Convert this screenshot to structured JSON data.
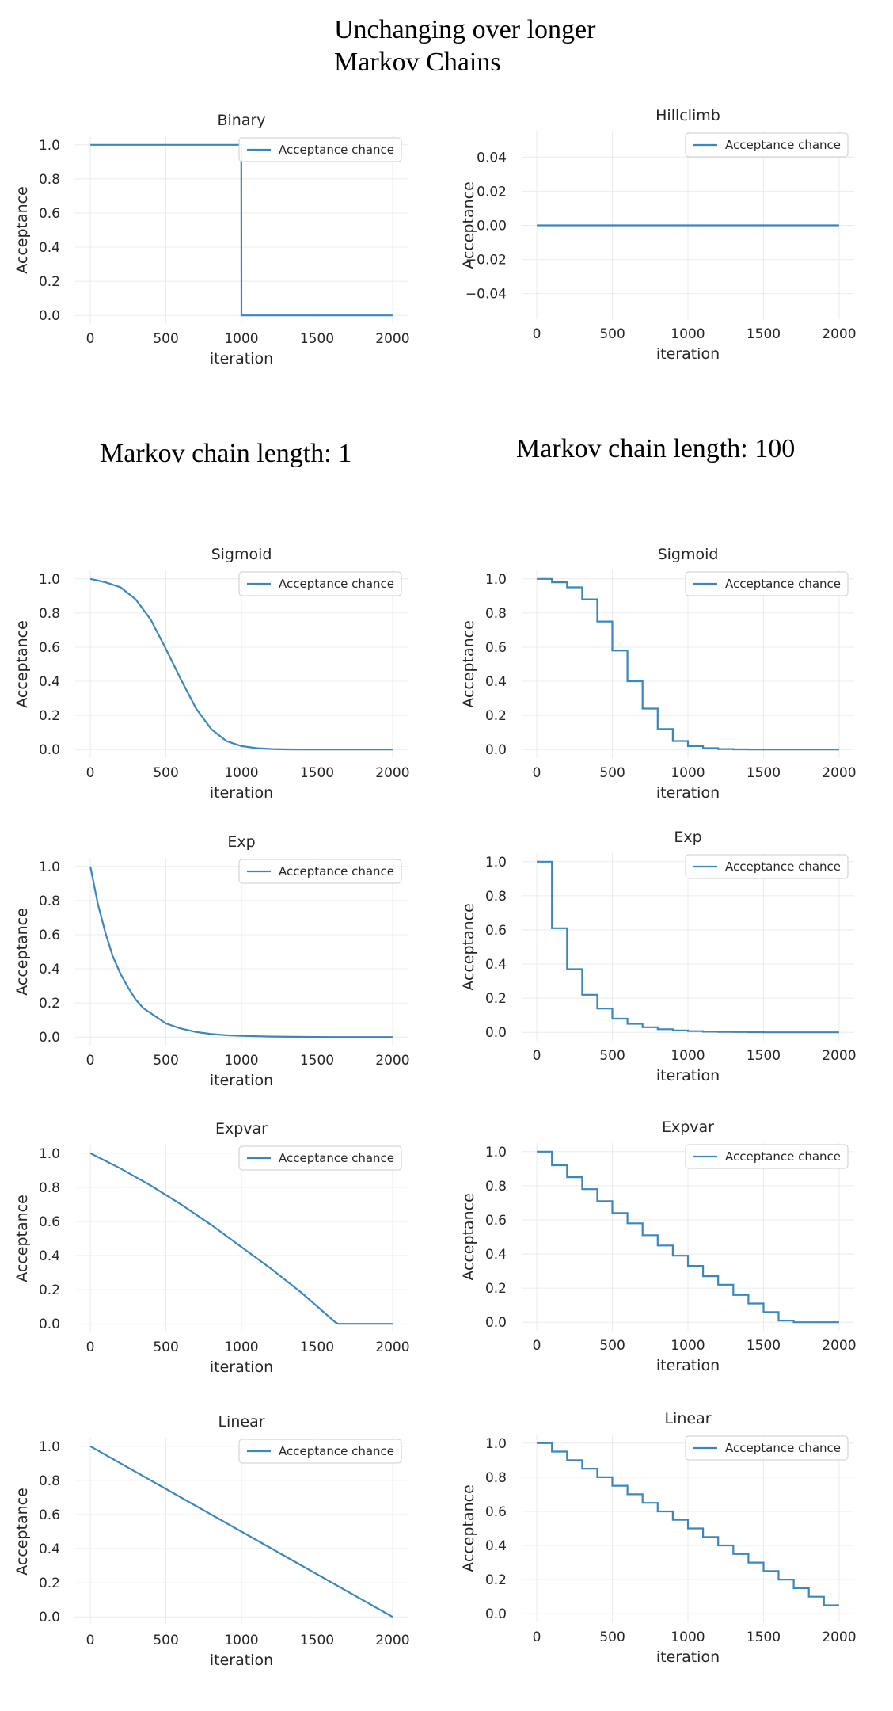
{
  "page": {
    "top_note": [
      "Unchanging over longer",
      "Markov Chains"
    ],
    "left_column_title": "Markov chain length: 1",
    "right_column_title": "Markov chain length: 100"
  },
  "style": {
    "line_color": "#3a87c0",
    "grid_color": "#ebebeb",
    "text_color": "#262626"
  },
  "chart_data": [
    {
      "id": "binary",
      "type": "line",
      "title": "Binary",
      "xlabel": "iteration",
      "ylabel": "Acceptance",
      "legend": "Acceptance chance",
      "legend_position": "top-right",
      "grid": true,
      "xlim": [
        -100,
        2100
      ],
      "ylim": [
        -0.05,
        1.05
      ],
      "xticks": [
        0,
        500,
        1000,
        1500,
        2000
      ],
      "xtick_labels": [
        "0",
        "500",
        "1000",
        "1500",
        "2000"
      ],
      "yticks": [
        0,
        0.2,
        0.4,
        0.6,
        0.8,
        1.0
      ],
      "ytick_labels": [
        "0.0",
        "0.2",
        "0.4",
        "0.6",
        "0.8",
        "1.0"
      ],
      "series": [
        {
          "name": "Acceptance chance",
          "x": [
            0,
            999,
            1000,
            2000
          ],
          "y": [
            1,
            1,
            0,
            0
          ]
        }
      ]
    },
    {
      "id": "hillclimb",
      "type": "line",
      "title": "Hillclimb",
      "xlabel": "iteration",
      "ylabel": "Acceptance",
      "legend": "Acceptance chance",
      "legend_position": "top-right",
      "grid": true,
      "xlim": [
        -100,
        2100
      ],
      "ylim": [
        -0.055,
        0.055
      ],
      "xticks": [
        0,
        500,
        1000,
        1500,
        2000
      ],
      "xtick_labels": [
        "0",
        "500",
        "1000",
        "1500",
        "2000"
      ],
      "yticks": [
        -0.04,
        -0.02,
        0,
        0.02,
        0.04
      ],
      "ytick_labels": [
        "−0.04",
        "−0.02",
        "0.00",
        "0.02",
        "0.04"
      ],
      "series": [
        {
          "name": "Acceptance chance",
          "x": [
            0,
            2000
          ],
          "y": [
            0,
            0
          ]
        }
      ]
    },
    {
      "id": "sigmoid-1",
      "type": "line",
      "title": "Sigmoid",
      "xlabel": "iteration",
      "ylabel": "Acceptance",
      "legend": "Acceptance chance",
      "legend_position": "top-right",
      "grid": true,
      "xlim": [
        -100,
        2100
      ],
      "ylim": [
        -0.05,
        1.05
      ],
      "xticks": [
        0,
        500,
        1000,
        1500,
        2000
      ],
      "xtick_labels": [
        "0",
        "500",
        "1000",
        "1500",
        "2000"
      ],
      "yticks": [
        0,
        0.2,
        0.4,
        0.6,
        0.8,
        1.0
      ],
      "ytick_labels": [
        "0.0",
        "0.2",
        "0.4",
        "0.6",
        "0.8",
        "1.0"
      ],
      "series": [
        {
          "name": "Acceptance chance",
          "x": [
            0,
            100,
            200,
            300,
            400,
            500,
            600,
            700,
            800,
            900,
            1000,
            1100,
            1200,
            1300,
            1400,
            1500,
            2000
          ],
          "y": [
            1.0,
            0.98,
            0.95,
            0.88,
            0.76,
            0.59,
            0.41,
            0.24,
            0.12,
            0.05,
            0.02,
            0.008,
            0.003,
            0.001,
            0,
            0,
            0
          ]
        }
      ]
    },
    {
      "id": "sigmoid-100",
      "type": "line",
      "title": "Sigmoid",
      "xlabel": "iteration",
      "ylabel": "Acceptance",
      "legend": "Acceptance chance",
      "legend_position": "top-right",
      "grid": true,
      "xlim": [
        -100,
        2100
      ],
      "ylim": [
        -0.05,
        1.05
      ],
      "xticks": [
        0,
        500,
        1000,
        1500,
        2000
      ],
      "xtick_labels": [
        "0",
        "500",
        "1000",
        "1500",
        "2000"
      ],
      "yticks": [
        0,
        0.2,
        0.4,
        0.6,
        0.8,
        1.0
      ],
      "ytick_labels": [
        "0.0",
        "0.2",
        "0.4",
        "0.6",
        "0.8",
        "1.0"
      ],
      "series": [
        {
          "name": "Acceptance chance",
          "step": true,
          "x": [
            0,
            100,
            200,
            300,
            400,
            500,
            600,
            700,
            800,
            900,
            1000,
            1100,
            1200,
            1300,
            1400,
            1500,
            2000
          ],
          "y": [
            1.0,
            0.98,
            0.95,
            0.88,
            0.75,
            0.58,
            0.4,
            0.24,
            0.12,
            0.05,
            0.02,
            0.008,
            0.003,
            0.001,
            0,
            0,
            0
          ]
        }
      ]
    },
    {
      "id": "exp-1",
      "type": "line",
      "title": "Exp",
      "xlabel": "iteration",
      "ylabel": "Acceptance",
      "legend": "Acceptance chance",
      "legend_position": "top-right",
      "grid": true,
      "xlim": [
        -100,
        2100
      ],
      "ylim": [
        -0.05,
        1.05
      ],
      "xticks": [
        0,
        500,
        1000,
        1500,
        2000
      ],
      "xtick_labels": [
        "0",
        "500",
        "1000",
        "1500",
        "2000"
      ],
      "yticks": [
        0,
        0.2,
        0.4,
        0.6,
        0.8,
        1.0
      ],
      "ytick_labels": [
        "0.0",
        "0.2",
        "0.4",
        "0.6",
        "0.8",
        "1.0"
      ],
      "series": [
        {
          "name": "Acceptance chance",
          "x": [
            0,
            50,
            100,
            150,
            200,
            250,
            300,
            350,
            400,
            500,
            600,
            700,
            800,
            900,
            1000,
            1200,
            1400,
            1600,
            1800,
            2000
          ],
          "y": [
            1.0,
            0.78,
            0.61,
            0.47,
            0.37,
            0.29,
            0.22,
            0.17,
            0.14,
            0.08,
            0.05,
            0.03,
            0.018,
            0.011,
            0.007,
            0.003,
            0.001,
            0,
            0,
            0
          ]
        }
      ]
    },
    {
      "id": "exp-100",
      "type": "line",
      "title": "Exp",
      "xlabel": "iteration",
      "ylabel": "Acceptance",
      "legend": "Acceptance chance",
      "legend_position": "top-right",
      "grid": true,
      "xlim": [
        -100,
        2100
      ],
      "ylim": [
        -0.05,
        1.05
      ],
      "xticks": [
        0,
        500,
        1000,
        1500,
        2000
      ],
      "xtick_labels": [
        "0",
        "500",
        "1000",
        "1500",
        "2000"
      ],
      "yticks": [
        0,
        0.2,
        0.4,
        0.6,
        0.8,
        1.0
      ],
      "ytick_labels": [
        "0.0",
        "0.2",
        "0.4",
        "0.6",
        "0.8",
        "1.0"
      ],
      "series": [
        {
          "name": "Acceptance chance",
          "step": true,
          "x": [
            0,
            100,
            200,
            300,
            400,
            500,
            600,
            700,
            800,
            900,
            1000,
            1100,
            1200,
            1300,
            1400,
            1500,
            2000
          ],
          "y": [
            1.0,
            0.61,
            0.37,
            0.22,
            0.14,
            0.08,
            0.05,
            0.03,
            0.018,
            0.011,
            0.007,
            0.004,
            0.003,
            0.002,
            0.001,
            0,
            0
          ]
        }
      ]
    },
    {
      "id": "expvar-1",
      "type": "line",
      "title": "Expvar",
      "xlabel": "iteration",
      "ylabel": "Acceptance",
      "legend": "Acceptance chance",
      "legend_position": "top-right",
      "grid": true,
      "xlim": [
        -100,
        2100
      ],
      "ylim": [
        -0.05,
        1.05
      ],
      "xticks": [
        0,
        500,
        1000,
        1500,
        2000
      ],
      "xtick_labels": [
        "0",
        "500",
        "1000",
        "1500",
        "2000"
      ],
      "yticks": [
        0,
        0.2,
        0.4,
        0.6,
        0.8,
        1.0
      ],
      "ytick_labels": [
        "0.0",
        "0.2",
        "0.4",
        "0.6",
        "0.8",
        "1.0"
      ],
      "series": [
        {
          "name": "Acceptance chance",
          "x": [
            0,
            200,
            400,
            600,
            800,
            1000,
            1200,
            1400,
            1620,
            1640,
            2000
          ],
          "y": [
            1.0,
            0.91,
            0.81,
            0.7,
            0.58,
            0.45,
            0.32,
            0.18,
            0.01,
            0,
            0
          ]
        }
      ]
    },
    {
      "id": "expvar-100",
      "type": "line",
      "title": "Expvar",
      "xlabel": "iteration",
      "ylabel": "Acceptance",
      "legend": "Acceptance chance",
      "legend_position": "top-right",
      "grid": true,
      "xlim": [
        -100,
        2100
      ],
      "ylim": [
        -0.05,
        1.05
      ],
      "xticks": [
        0,
        500,
        1000,
        1500,
        2000
      ],
      "xtick_labels": [
        "0",
        "500",
        "1000",
        "1500",
        "2000"
      ],
      "yticks": [
        0,
        0.2,
        0.4,
        0.6,
        0.8,
        1.0
      ],
      "ytick_labels": [
        "0.0",
        "0.2",
        "0.4",
        "0.6",
        "0.8",
        "1.0"
      ],
      "series": [
        {
          "name": "Acceptance chance",
          "step": true,
          "x": [
            0,
            100,
            200,
            300,
            400,
            500,
            600,
            700,
            800,
            900,
            1000,
            1100,
            1200,
            1300,
            1400,
            1500,
            1600,
            1700,
            2000
          ],
          "y": [
            1.0,
            0.92,
            0.85,
            0.78,
            0.71,
            0.64,
            0.58,
            0.51,
            0.45,
            0.39,
            0.33,
            0.27,
            0.22,
            0.16,
            0.11,
            0.06,
            0.01,
            0,
            0
          ]
        }
      ]
    },
    {
      "id": "linear-1",
      "type": "line",
      "title": "Linear",
      "xlabel": "iteration",
      "ylabel": "Acceptance",
      "legend": "Acceptance chance",
      "legend_position": "top-right",
      "grid": true,
      "xlim": [
        -100,
        2100
      ],
      "ylim": [
        -0.05,
        1.05
      ],
      "xticks": [
        0,
        500,
        1000,
        1500,
        2000
      ],
      "xtick_labels": [
        "0",
        "500",
        "1000",
        "1500",
        "2000"
      ],
      "yticks": [
        0,
        0.2,
        0.4,
        0.6,
        0.8,
        1.0
      ],
      "ytick_labels": [
        "0.0",
        "0.2",
        "0.4",
        "0.6",
        "0.8",
        "1.0"
      ],
      "series": [
        {
          "name": "Acceptance chance",
          "x": [
            0,
            2000
          ],
          "y": [
            1.0,
            0.0
          ]
        }
      ]
    },
    {
      "id": "linear-100",
      "type": "line",
      "title": "Linear",
      "xlabel": "iteration",
      "ylabel": "Acceptance",
      "legend": "Acceptance chance",
      "legend_position": "top-right",
      "grid": true,
      "xlim": [
        -100,
        2100
      ],
      "ylim": [
        -0.05,
        1.05
      ],
      "xticks": [
        0,
        500,
        1000,
        1500,
        2000
      ],
      "xtick_labels": [
        "0",
        "500",
        "1000",
        "1500",
        "2000"
      ],
      "yticks": [
        0,
        0.2,
        0.4,
        0.6,
        0.8,
        1.0
      ],
      "ytick_labels": [
        "0.0",
        "0.2",
        "0.4",
        "0.6",
        "0.8",
        "1.0"
      ],
      "series": [
        {
          "name": "Acceptance chance",
          "step": true,
          "x": [
            0,
            100,
            200,
            300,
            400,
            500,
            600,
            700,
            800,
            900,
            1000,
            1100,
            1200,
            1300,
            1400,
            1500,
            1600,
            1700,
            1800,
            1900,
            2000
          ],
          "y": [
            1.0,
            0.95,
            0.9,
            0.85,
            0.8,
            0.75,
            0.7,
            0.65,
            0.6,
            0.55,
            0.5,
            0.45,
            0.4,
            0.35,
            0.3,
            0.25,
            0.2,
            0.15,
            0.1,
            0.05,
            0.05
          ]
        }
      ]
    }
  ]
}
